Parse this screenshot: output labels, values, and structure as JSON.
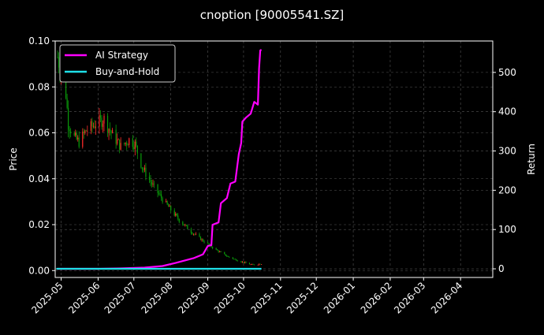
{
  "chart_data": {
    "type": "candlestick-line",
    "title": "cnoption [90005541.SZ]",
    "ylabel_left": "Price",
    "ylabel_right": "Return",
    "ylim_left": [
      -0.003,
      0.1
    ],
    "ylim_right": [
      -22,
      580
    ],
    "yticks_left": [
      "0.00",
      "0.02",
      "0.04",
      "0.06",
      "0.08",
      "0.10"
    ],
    "yticks_right": [
      "0",
      "100",
      "200",
      "300",
      "400",
      "500"
    ],
    "xlim": [
      "2025-04-26",
      "2026-04-28"
    ],
    "xticks": [
      "2025-05",
      "2025-06",
      "2025-07",
      "2025-08",
      "2025-09",
      "2025-10",
      "2025-11",
      "2025-12",
      "2026-01",
      "2026-02",
      "2026-03",
      "2026-04"
    ],
    "grid": true,
    "legend_position": "top-left",
    "colors": {
      "background": "#000000",
      "up": "#ff2a2a",
      "down": "#0a9a0a",
      "ai": "#ff00ff",
      "hold": "#1fe0e8",
      "grid": "#555555"
    },
    "price_anchors": [
      {
        "x": "2025-04-28",
        "y": 0.093
      },
      {
        "x": "2025-04-30",
        "y": 0.088
      },
      {
        "x": "2025-05-02",
        "y": 0.084
      },
      {
        "x": "2025-05-05",
        "y": 0.077
      },
      {
        "x": "2025-05-07",
        "y": 0.064
      },
      {
        "x": "2025-05-12",
        "y": 0.058
      },
      {
        "x": "2025-05-16",
        "y": 0.056
      },
      {
        "x": "2025-05-22",
        "y": 0.061
      },
      {
        "x": "2025-05-30",
        "y": 0.064
      },
      {
        "x": "2025-06-06",
        "y": 0.066
      },
      {
        "x": "2025-06-12",
        "y": 0.06
      },
      {
        "x": "2025-06-20",
        "y": 0.054
      },
      {
        "x": "2025-06-27",
        "y": 0.057
      },
      {
        "x": "2025-07-02",
        "y": 0.055
      },
      {
        "x": "2025-07-08",
        "y": 0.045
      },
      {
        "x": "2025-07-18",
        "y": 0.036
      },
      {
        "x": "2025-07-28",
        "y": 0.029
      },
      {
        "x": "2025-08-08",
        "y": 0.022
      },
      {
        "x": "2025-08-18",
        "y": 0.017
      },
      {
        "x": "2025-08-28",
        "y": 0.013
      },
      {
        "x": "2025-09-08",
        "y": 0.009
      },
      {
        "x": "2025-09-18",
        "y": 0.006
      },
      {
        "x": "2025-09-28",
        "y": 0.004
      },
      {
        "x": "2025-10-08",
        "y": 0.0025
      },
      {
        "x": "2025-10-16",
        "y": 0.003
      }
    ],
    "series": [
      {
        "name": "AI Strategy",
        "points": [
          {
            "x": "2025-04-28",
            "y": 0
          },
          {
            "x": "2025-06-01",
            "y": 0
          },
          {
            "x": "2025-06-20",
            "y": 1
          },
          {
            "x": "2025-07-10",
            "y": 3
          },
          {
            "x": "2025-07-25",
            "y": 7
          },
          {
            "x": "2025-08-05",
            "y": 15
          },
          {
            "x": "2025-08-20",
            "y": 27
          },
          {
            "x": "2025-08-28",
            "y": 37
          },
          {
            "x": "2025-09-01",
            "y": 58
          },
          {
            "x": "2025-09-04",
            "y": 60
          },
          {
            "x": "2025-09-05",
            "y": 112
          },
          {
            "x": "2025-09-10",
            "y": 118
          },
          {
            "x": "2025-09-12",
            "y": 167
          },
          {
            "x": "2025-09-17",
            "y": 180
          },
          {
            "x": "2025-09-20",
            "y": 217
          },
          {
            "x": "2025-09-24",
            "y": 222
          },
          {
            "x": "2025-09-27",
            "y": 292
          },
          {
            "x": "2025-09-29",
            "y": 320
          },
          {
            "x": "2025-09-30",
            "y": 375
          },
          {
            "x": "2025-10-03",
            "y": 385
          },
          {
            "x": "2025-10-07",
            "y": 395
          },
          {
            "x": "2025-10-10",
            "y": 425
          },
          {
            "x": "2025-10-13",
            "y": 418
          },
          {
            "x": "2025-10-14",
            "y": 510
          },
          {
            "x": "2025-10-15",
            "y": 556
          },
          {
            "x": "2025-10-16",
            "y": 558
          }
        ]
      },
      {
        "name": "Buy-and-Hold",
        "points": [
          {
            "x": "2025-04-27",
            "y": 0
          },
          {
            "x": "2025-10-16",
            "y": 0
          }
        ]
      }
    ]
  }
}
